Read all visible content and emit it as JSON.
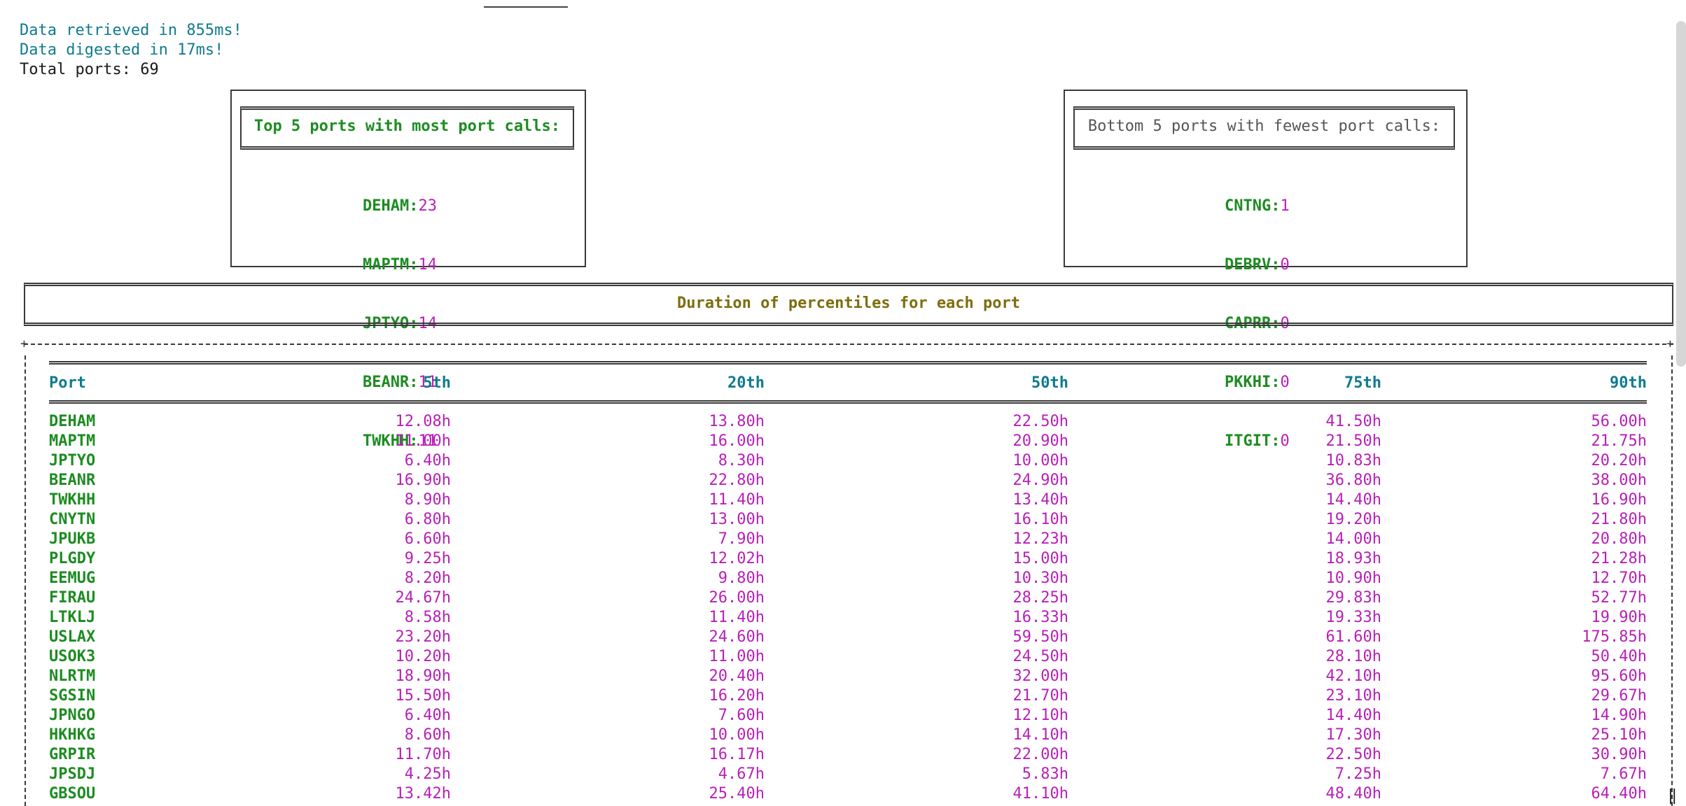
{
  "status": {
    "retrieved": "Data retrieved in 855ms!",
    "digested": "Data digested in 17ms!",
    "total_label": "Total ports:",
    "total_value": "69"
  },
  "top5": {
    "title": "Top 5 ports with most port calls:",
    "items": [
      {
        "port": "DEHAM",
        "count": "23"
      },
      {
        "port": "MAPTM",
        "count": "14"
      },
      {
        "port": "JPTYO",
        "count": "14"
      },
      {
        "port": "BEANR",
        "count": "11"
      },
      {
        "port": "TWKHH",
        "count": "11"
      }
    ]
  },
  "bottom5": {
    "title": "Bottom 5 ports with fewest port calls:",
    "items": [
      {
        "port": "CNTNG",
        "count": "1"
      },
      {
        "port": "DEBRV",
        "count": "0"
      },
      {
        "port": "CAPRR",
        "count": "0"
      },
      {
        "port": "PKKHI",
        "count": "0"
      },
      {
        "port": "ITGIT",
        "count": "0"
      }
    ]
  },
  "percentiles": {
    "title": "Duration of percentiles for each port",
    "headers": [
      "Port",
      "5th",
      "20th",
      "50th",
      "75th",
      "90th"
    ],
    "rows": [
      [
        "DEHAM",
        "12.08h",
        "13.80h",
        "22.50h",
        "41.50h",
        "56.00h"
      ],
      [
        "MAPTM",
        "11.00h",
        "16.00h",
        "20.90h",
        "21.50h",
        "21.75h"
      ],
      [
        "JPTYO",
        "6.40h",
        "8.30h",
        "10.00h",
        "10.83h",
        "20.20h"
      ],
      [
        "BEANR",
        "16.90h",
        "22.80h",
        "24.90h",
        "36.80h",
        "38.00h"
      ],
      [
        "TWKHH",
        "8.90h",
        "11.40h",
        "13.40h",
        "14.40h",
        "16.90h"
      ],
      [
        "CNYTN",
        "6.80h",
        "13.00h",
        "16.10h",
        "19.20h",
        "21.80h"
      ],
      [
        "JPUKB",
        "6.60h",
        "7.90h",
        "12.23h",
        "14.00h",
        "20.80h"
      ],
      [
        "PLGDY",
        "9.25h",
        "12.02h",
        "15.00h",
        "18.93h",
        "21.28h"
      ],
      [
        "EEMUG",
        "8.20h",
        "9.80h",
        "10.30h",
        "10.90h",
        "12.70h"
      ],
      [
        "FIRAU",
        "24.67h",
        "26.00h",
        "28.25h",
        "29.83h",
        "52.77h"
      ],
      [
        "LTKLJ",
        "8.58h",
        "11.40h",
        "16.33h",
        "19.33h",
        "19.90h"
      ],
      [
        "USLAX",
        "23.20h",
        "24.60h",
        "59.50h",
        "61.60h",
        "175.85h"
      ],
      [
        "USOK3",
        "10.20h",
        "11.00h",
        "24.50h",
        "28.10h",
        "50.40h"
      ],
      [
        "NLRTM",
        "18.90h",
        "20.40h",
        "32.00h",
        "42.10h",
        "95.60h"
      ],
      [
        "SGSIN",
        "15.50h",
        "16.20h",
        "21.70h",
        "23.10h",
        "29.67h"
      ],
      [
        "JPNGO",
        "6.40h",
        "7.60h",
        "12.10h",
        "14.40h",
        "14.90h"
      ],
      [
        "HKHKG",
        "8.60h",
        "10.00h",
        "14.10h",
        "17.30h",
        "25.10h"
      ],
      [
        "GRPIR",
        "11.70h",
        "16.17h",
        "22.00h",
        "22.50h",
        "30.90h"
      ],
      [
        "JPSDJ",
        "4.25h",
        "4.67h",
        "5.83h",
        "7.25h",
        "7.67h"
      ],
      [
        "GBSOU",
        "13.42h",
        "25.40h",
        "41.10h",
        "48.40h",
        "64.40h"
      ]
    ]
  }
}
